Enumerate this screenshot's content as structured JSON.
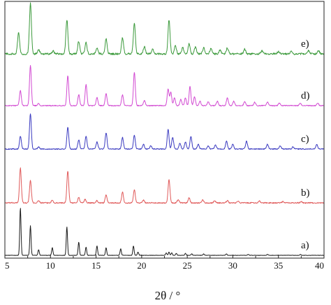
{
  "chart_data": {
    "type": "line",
    "title": "",
    "xlabel": "2θ / °",
    "ylabel": "",
    "xlim": [
      5,
      40
    ],
    "x_ticks": [
      5,
      10,
      15,
      20,
      25,
      30,
      35,
      40
    ],
    "x_tick_labels": [
      "5",
      "10",
      "15",
      "20",
      "25",
      "30",
      "35",
      "40"
    ],
    "y_ticks_shown": false,
    "grid": false,
    "legend": "none",
    "series": [
      {
        "name": "a)",
        "color": "#1a1a1a",
        "baseline_offset": 0,
        "noise": 0.004,
        "peaks": [
          [
            6.7,
            1.0,
            0.07
          ],
          [
            7.8,
            0.62,
            0.07
          ],
          [
            8.7,
            0.12,
            0.07
          ],
          [
            10.2,
            0.16,
            0.07
          ],
          [
            11.8,
            0.6,
            0.07
          ],
          [
            13.1,
            0.28,
            0.07
          ],
          [
            13.9,
            0.17,
            0.07
          ],
          [
            15.1,
            0.2,
            0.07
          ],
          [
            16.1,
            0.16,
            0.07
          ],
          [
            17.7,
            0.14,
            0.07
          ],
          [
            19.1,
            0.2,
            0.07
          ],
          [
            19.6,
            0.07,
            0.07
          ],
          [
            22.7,
            0.05,
            0.07
          ],
          [
            23.0,
            0.07,
            0.07
          ],
          [
            23.3,
            0.05,
            0.07
          ],
          [
            23.8,
            0.04,
            0.07
          ],
          [
            24.8,
            0.04,
            0.07
          ],
          [
            25.5,
            0.03,
            0.07
          ],
          [
            26.8,
            0.03,
            0.07
          ],
          [
            29.3,
            0.03,
            0.07
          ],
          [
            31.7,
            0.02,
            0.07
          ],
          [
            33.8,
            0.02,
            0.07
          ],
          [
            37.4,
            0.02,
            0.07
          ]
        ]
      },
      {
        "name": "b)",
        "color": "#e05a5a",
        "baseline_offset": 1,
        "noise": 0.012,
        "peaks": [
          [
            6.7,
            0.78,
            0.1
          ],
          [
            7.8,
            0.5,
            0.1
          ],
          [
            8.7,
            0.05,
            0.1
          ],
          [
            10.2,
            0.06,
            0.1
          ],
          [
            11.9,
            0.72,
            0.1
          ],
          [
            13.1,
            0.12,
            0.1
          ],
          [
            13.8,
            0.08,
            0.1
          ],
          [
            15.1,
            0.05,
            0.1
          ],
          [
            16.1,
            0.17,
            0.1
          ],
          [
            17.9,
            0.24,
            0.1
          ],
          [
            19.2,
            0.3,
            0.1
          ],
          [
            20.2,
            0.06,
            0.1
          ],
          [
            23.0,
            0.53,
            0.1
          ],
          [
            24.0,
            0.07,
            0.1
          ],
          [
            25.2,
            0.11,
            0.1
          ],
          [
            26.7,
            0.07,
            0.1
          ],
          [
            28.0,
            0.05,
            0.1
          ],
          [
            29.4,
            0.05,
            0.1
          ],
          [
            30.6,
            0.04,
            0.1
          ],
          [
            32.9,
            0.04,
            0.1
          ],
          [
            35.5,
            0.03,
            0.1
          ],
          [
            37.5,
            0.03,
            0.1
          ]
        ]
      },
      {
        "name": "c)",
        "color": "#3a3ac0",
        "baseline_offset": 2,
        "noise": 0.012,
        "peaks": [
          [
            6.7,
            0.33,
            0.1
          ],
          [
            7.8,
            0.9,
            0.1
          ],
          [
            8.7,
            0.05,
            0.1
          ],
          [
            11.9,
            0.55,
            0.1
          ],
          [
            13.1,
            0.23,
            0.1
          ],
          [
            13.9,
            0.33,
            0.1
          ],
          [
            15.1,
            0.18,
            0.1
          ],
          [
            16.1,
            0.42,
            0.1
          ],
          [
            17.9,
            0.3,
            0.1
          ],
          [
            19.2,
            0.36,
            0.1
          ],
          [
            20.2,
            0.12,
            0.1
          ],
          [
            21.0,
            0.08,
            0.1
          ],
          [
            22.9,
            0.5,
            0.1
          ],
          [
            23.4,
            0.3,
            0.1
          ],
          [
            24.2,
            0.15,
            0.1
          ],
          [
            24.8,
            0.18,
            0.1
          ],
          [
            25.4,
            0.33,
            0.1
          ],
          [
            26.2,
            0.12,
            0.1
          ],
          [
            27.3,
            0.08,
            0.1
          ],
          [
            28.1,
            0.1,
            0.1
          ],
          [
            29.3,
            0.2,
            0.1
          ],
          [
            30.0,
            0.12,
            0.1
          ],
          [
            31.5,
            0.2,
            0.1
          ],
          [
            33.8,
            0.12,
            0.1
          ],
          [
            35.2,
            0.08,
            0.1
          ],
          [
            36.6,
            0.06,
            0.1
          ],
          [
            39.2,
            0.12,
            0.1
          ]
        ]
      },
      {
        "name": "d)",
        "color": "#d24ad2",
        "baseline_offset": 3,
        "noise": 0.01,
        "peaks": [
          [
            6.7,
            0.35,
            0.1
          ],
          [
            7.8,
            0.92,
            0.1
          ],
          [
            8.7,
            0.05,
            0.1
          ],
          [
            11.9,
            0.68,
            0.1
          ],
          [
            13.1,
            0.25,
            0.1
          ],
          [
            13.9,
            0.48,
            0.1
          ],
          [
            15.1,
            0.18,
            0.1
          ],
          [
            16.1,
            0.28,
            0.1
          ],
          [
            17.9,
            0.25,
            0.1
          ],
          [
            19.2,
            0.76,
            0.1
          ],
          [
            20.3,
            0.12,
            0.1
          ],
          [
            22.9,
            0.38,
            0.1
          ],
          [
            23.2,
            0.3,
            0.1
          ],
          [
            23.6,
            0.18,
            0.1
          ],
          [
            24.3,
            0.14,
            0.1
          ],
          [
            24.8,
            0.18,
            0.1
          ],
          [
            25.3,
            0.43,
            0.1
          ],
          [
            25.8,
            0.2,
            0.1
          ],
          [
            26.4,
            0.1,
            0.1
          ],
          [
            27.3,
            0.09,
            0.1
          ],
          [
            28.3,
            0.1,
            0.1
          ],
          [
            29.4,
            0.18,
            0.1
          ],
          [
            30.1,
            0.1,
            0.1
          ],
          [
            31.3,
            0.09,
            0.1
          ],
          [
            32.4,
            0.08,
            0.1
          ],
          [
            33.8,
            0.08,
            0.1
          ],
          [
            35.1,
            0.06,
            0.1
          ],
          [
            37.4,
            0.05,
            0.1
          ],
          [
            39.3,
            0.06,
            0.1
          ]
        ]
      },
      {
        "name": "e)",
        "color": "#3c9a3c",
        "baseline_offset": 4,
        "noise": 0.018,
        "peaks": [
          [
            6.5,
            0.42,
            0.11
          ],
          [
            7.8,
            1.0,
            0.11
          ],
          [
            8.7,
            0.08,
            0.11
          ],
          [
            10.3,
            0.06,
            0.11
          ],
          [
            11.8,
            0.68,
            0.11
          ],
          [
            13.1,
            0.25,
            0.11
          ],
          [
            13.9,
            0.22,
            0.11
          ],
          [
            15.1,
            0.12,
            0.11
          ],
          [
            16.1,
            0.3,
            0.11
          ],
          [
            17.9,
            0.32,
            0.11
          ],
          [
            19.2,
            0.62,
            0.11
          ],
          [
            20.3,
            0.14,
            0.11
          ],
          [
            21.2,
            0.1,
            0.11
          ],
          [
            23.0,
            0.68,
            0.11
          ],
          [
            23.7,
            0.16,
            0.11
          ],
          [
            24.5,
            0.12,
            0.11
          ],
          [
            25.2,
            0.2,
            0.11
          ],
          [
            25.9,
            0.14,
            0.11
          ],
          [
            26.8,
            0.12,
            0.11
          ],
          [
            27.6,
            0.1,
            0.11
          ],
          [
            28.6,
            0.08,
            0.11
          ],
          [
            29.4,
            0.12,
            0.11
          ],
          [
            31.3,
            0.1,
            0.11
          ],
          [
            33.2,
            0.06,
            0.11
          ],
          [
            35.0,
            0.05,
            0.11
          ],
          [
            36.4,
            0.05,
            0.11
          ],
          [
            38.3,
            0.06,
            0.11
          ],
          [
            39.4,
            0.06,
            0.11
          ]
        ]
      }
    ]
  }
}
